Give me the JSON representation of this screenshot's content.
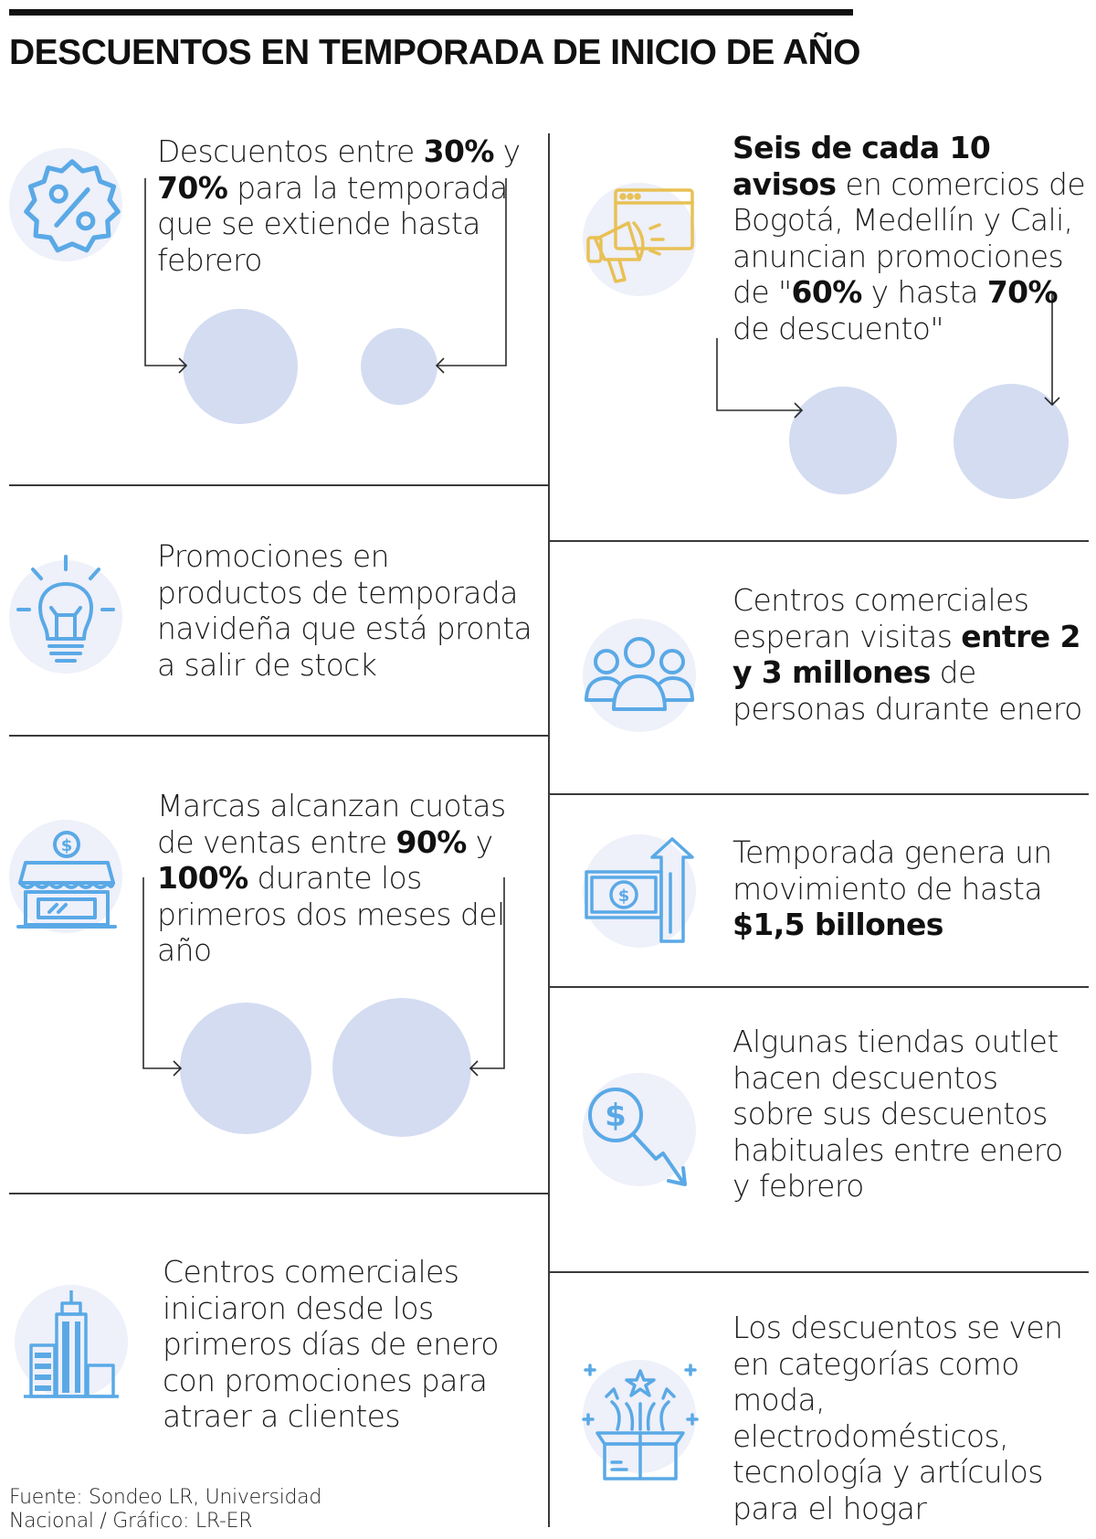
{
  "title": "DESCUENTOS EN TEMPORADA DE INICIO DE AÑO",
  "colors": {
    "icon": "#5aa9e6",
    "icon_gold": "#e8c155",
    "bubble": "#eef0fa",
    "circle": "#d3dcf1",
    "rule": "#3a3a3a"
  },
  "items": [
    {
      "icon": "percent-badge-icon",
      "parts": [
        {
          "t": "Descuentos entre ",
          "b": false
        },
        {
          "t": "30%",
          "b": true
        },
        {
          "t": " y ",
          "b": false
        },
        {
          "t": "70%",
          "b": true
        },
        {
          "t": " para la temporada que se extiende hasta febrero",
          "b": false
        }
      ]
    },
    {
      "icon": "megaphone-icon",
      "parts": [
        {
          "t": "Seis de cada 10 avisos",
          "b": true
        },
        {
          "t": " en comercios de Bogotá, Medellín y Cali, anuncian promociones de \"",
          "b": false
        },
        {
          "t": "60%",
          "b": true
        },
        {
          "t": " y hasta ",
          "b": false
        },
        {
          "t": "70%",
          "b": true
        },
        {
          "t": " de descuento\"",
          "b": false
        }
      ]
    },
    {
      "icon": "lightbulb-icon",
      "parts": [
        {
          "t": "Promociones en productos de temporada navideña que está pronta a salir de stock",
          "b": false
        }
      ]
    },
    {
      "icon": "people-group-icon",
      "parts": [
        {
          "t": "Centros comerciales esperan visitas ",
          "b": false
        },
        {
          "t": "entre 2 y 3 millones",
          "b": true
        },
        {
          "t": " de personas durante enero",
          "b": false
        }
      ]
    },
    {
      "icon": "storefront-icon",
      "parts": [
        {
          "t": "Marcas alcanzan cuotas de ventas entre ",
          "b": false
        },
        {
          "t": "90%",
          "b": true
        },
        {
          "t": " y ",
          "b": false
        },
        {
          "t": "100%",
          "b": true
        },
        {
          "t": " durante los primeros dos meses del año",
          "b": false
        }
      ]
    },
    {
      "icon": "money-growth-icon",
      "parts": [
        {
          "t": "Temporada genera un movimiento de hasta ",
          "b": false
        },
        {
          "t": "$1,5 billones",
          "b": true
        }
      ]
    },
    {
      "icon": "price-drop-icon",
      "parts": [
        {
          "t": "Algunas tiendas outlet hacen descuentos sobre sus descuentos habituales entre enero y febrero",
          "b": false
        }
      ]
    },
    {
      "icon": "buildings-icon",
      "parts": [
        {
          "t": "Centros comerciales iniciaron desde los primeros días de enero con promociones para atraer a clientes",
          "b": false
        }
      ]
    },
    {
      "icon": "gift-box-icon",
      "parts": [
        {
          "t": "Los descuentos se ven en categorías como moda, electrodomésticos, tecnología y artículos para el hogar",
          "b": false
        }
      ]
    }
  ],
  "source": {
    "line1": "Fuente: Sondeo LR, Universidad",
    "line2": "Nacional / Gráfico: LR-ER"
  }
}
